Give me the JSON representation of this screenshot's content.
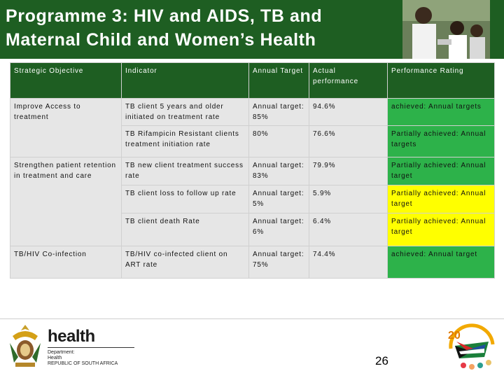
{
  "title": "Programme 3: HIV and AIDS, TB and Maternal Child and Women’s Health",
  "colors": {
    "header_green": "#1e5e22",
    "achieved_green": "#2db24a",
    "partial_yellow": "#ffff00"
  },
  "table": {
    "headers": [
      "Strategic Objective",
      "Indicator",
      "Annual Target",
      "Actual performance",
      "Performance Rating"
    ],
    "objectives": [
      "Improve Access to treatment",
      "Strengthen patient retention in treatment and care",
      "TB/HIV Co-infection"
    ],
    "rows": [
      {
        "indicator": "TB client 5 years and older initiated on treatment rate",
        "target": "Annual target: 85%",
        "actual": "94.6%",
        "rating": "achieved: Annual targets"
      },
      {
        "indicator": "TB Rifampicin Resistant clients treatment initiation rate",
        "target": "80%",
        "actual": "76.6%",
        "rating": "Partially achieved: Annual targets"
      },
      {
        "indicator": "TB new client treatment success rate",
        "target": "Annual target: 83%",
        "actual": "79.9%",
        "rating": "Partially achieved: Annual target"
      },
      {
        "indicator": "TB client loss to follow up rate",
        "target": "Annual target: 5%",
        "actual": "5.9%",
        "rating": "Partially achieved: Annual target"
      },
      {
        "indicator": "TB client death Rate",
        "target": "Annual target: 6%",
        "actual": "6.4%",
        "rating": "Partially achieved: Annual target"
      },
      {
        "indicator": "TB/HIV co-infected client on ART rate",
        "target": "Annual target: 75%",
        "actual": "74.4%",
        "rating": "achieved: Annual target"
      }
    ]
  },
  "footer": {
    "logo_word": "health",
    "dept_lines": [
      "Department:",
      "Health",
      "REPUBLIC OF SOUTH AFRICA"
    ],
    "anniv_text": "20 YEARS OF FREEDOM",
    "page_number": "26"
  }
}
